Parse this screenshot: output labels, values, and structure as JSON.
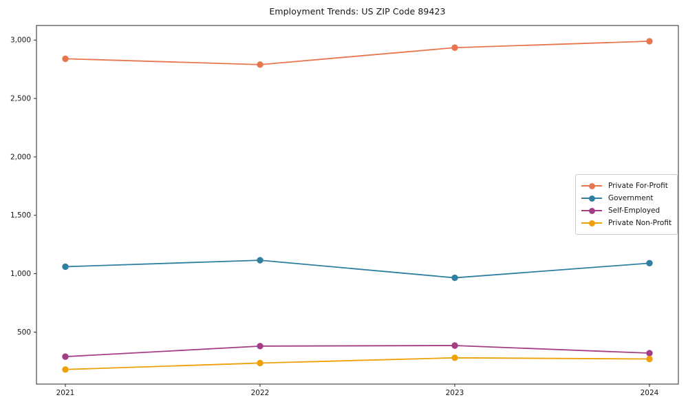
{
  "figure": {
    "background": "#ffffff",
    "frame_color": "#262626",
    "text_color": "#151515"
  },
  "chart_data": {
    "type": "line",
    "title": "Employment Trends: US ZIP Code 89423",
    "xlabel": "",
    "ylabel": "",
    "x": [
      2021,
      2022,
      2023,
      2024
    ],
    "x_tick_labels": [
      "2021",
      "2022",
      "2023",
      "2024"
    ],
    "y_ticks": [
      500,
      1000,
      1500,
      2000,
      2500,
      3000
    ],
    "y_tick_labels": [
      "500",
      "1,000",
      "1,500",
      "2,000",
      "2,500",
      "3,000"
    ],
    "ylim": [
      55,
      3125
    ],
    "grid": false,
    "legend_position": "center-right",
    "series": [
      {
        "name": "Private For-Profit",
        "color": "#e8764d",
        "values": [
          2840,
          2790,
          2935,
          2990
        ]
      },
      {
        "name": "Government",
        "color": "#2f7fa0",
        "values": [
          1060,
          1115,
          965,
          1090
        ]
      },
      {
        "name": "Self-Employed",
        "color": "#a33d85",
        "values": [
          290,
          380,
          385,
          320
        ]
      },
      {
        "name": "Private Non-Profit",
        "color": "#efa007",
        "values": [
          180,
          235,
          280,
          270
        ]
      }
    ]
  }
}
